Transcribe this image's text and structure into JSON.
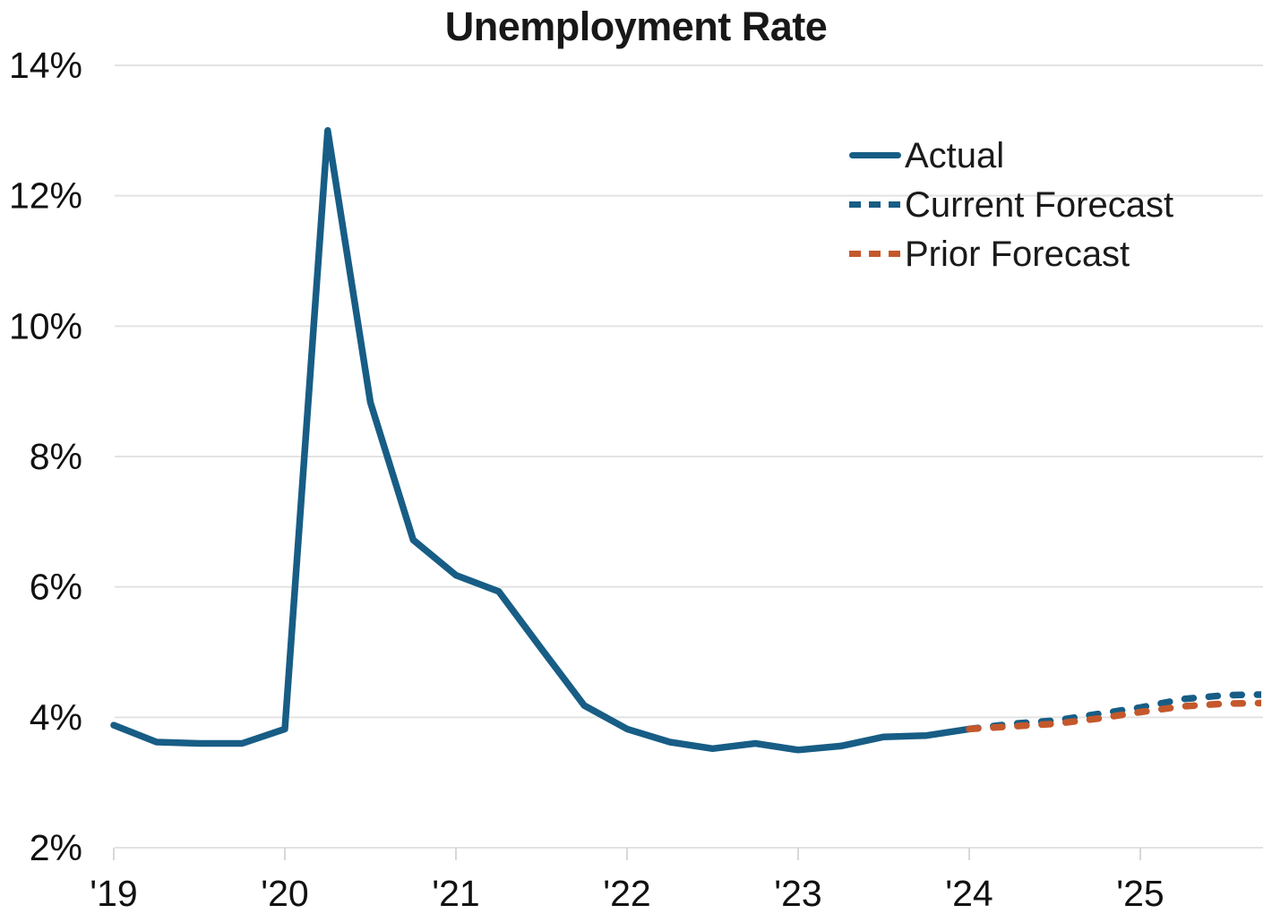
{
  "chart_data": {
    "type": "line",
    "title": "Unemployment Rate",
    "y_axis": {
      "min": 2,
      "max": 14,
      "step": 2,
      "unit": "%",
      "label_ticks": [
        "2%",
        "4%",
        "6%",
        "8%",
        "10%",
        "12%",
        "14%"
      ]
    },
    "x_axis": {
      "label_ticks": [
        "'19",
        "'20",
        "'21",
        "'22",
        "'23",
        "'24",
        "'25"
      ],
      "start_year": 2019,
      "frequency": "quarterly"
    },
    "grid": "horizontal-only",
    "legend_position": "upper-right",
    "series": [
      {
        "name": "Actual",
        "style": "solid",
        "color": "#175d85",
        "start_quarter": 0,
        "values": [
          3.88,
          3.62,
          3.6,
          3.6,
          3.82,
          13.0,
          8.83,
          6.72,
          6.18,
          5.93,
          5.05,
          4.18,
          3.82,
          3.62,
          3.52,
          3.6,
          3.5,
          3.56,
          3.7,
          3.72,
          3.82
        ]
      },
      {
        "name": "Current Forecast",
        "style": "dashed",
        "color": "#175d85",
        "start_quarter": 20,
        "values": [
          3.82,
          3.9,
          3.95,
          4.05,
          4.15,
          4.28,
          4.34,
          4.35
        ]
      },
      {
        "name": "Prior Forecast",
        "style": "dashed",
        "color": "#c4582c",
        "start_quarter": 20,
        "values": [
          3.82,
          3.86,
          3.9,
          3.98,
          4.08,
          4.17,
          4.21,
          4.22
        ]
      }
    ]
  }
}
